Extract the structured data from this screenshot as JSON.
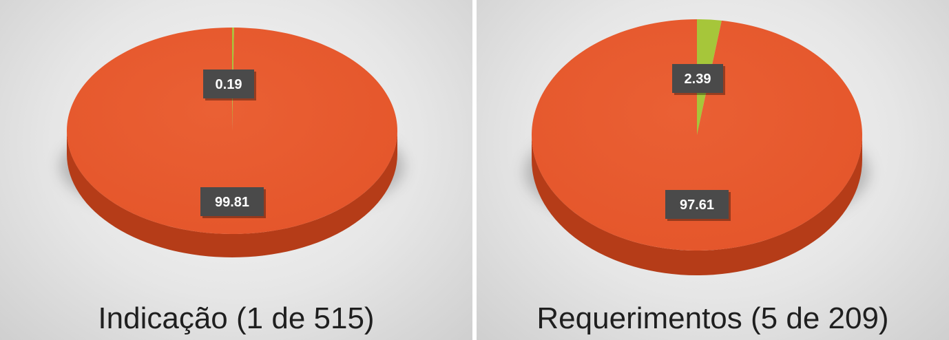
{
  "colors": {
    "main": "#e4552a",
    "main_side": "#b53c18",
    "minor": "#a6c63a",
    "label_bg": "#4a4a4a"
  },
  "chart_data": [
    {
      "type": "pie",
      "title": "Indicação (1 de 515)",
      "slices": [
        {
          "label": "0.19",
          "value": 0.19,
          "color": "#a6c63a"
        },
        {
          "label": "99.81",
          "value": 99.81,
          "color": "#e4552a"
        }
      ]
    },
    {
      "type": "pie",
      "title": "Requerimentos (5 de 209)",
      "slices": [
        {
          "label": "2.39",
          "value": 2.39,
          "color": "#a6c63a"
        },
        {
          "label": "97.61",
          "value": 97.61,
          "color": "#e4552a"
        }
      ]
    }
  ]
}
